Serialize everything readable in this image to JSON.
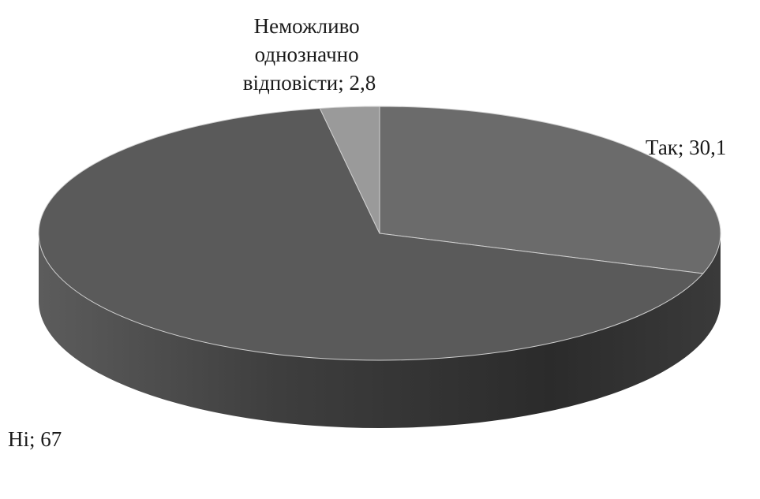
{
  "chart_data": {
    "type": "pie",
    "style": "3d",
    "title": "",
    "slices": [
      {
        "label": "Так",
        "value": 30.1,
        "display": "Так; 30,1",
        "color": "#6b6b6b"
      },
      {
        "label": "Ні",
        "value": 67,
        "display": "Ні; 67",
        "color": "#5a5a5a"
      },
      {
        "label": "Неможливо однозначно відповісти",
        "value": 2.8,
        "display_lines": [
          "Неможливо",
          "однозначно",
          "відповісти; 2,8"
        ],
        "color": "#9a9a9a"
      }
    ]
  }
}
